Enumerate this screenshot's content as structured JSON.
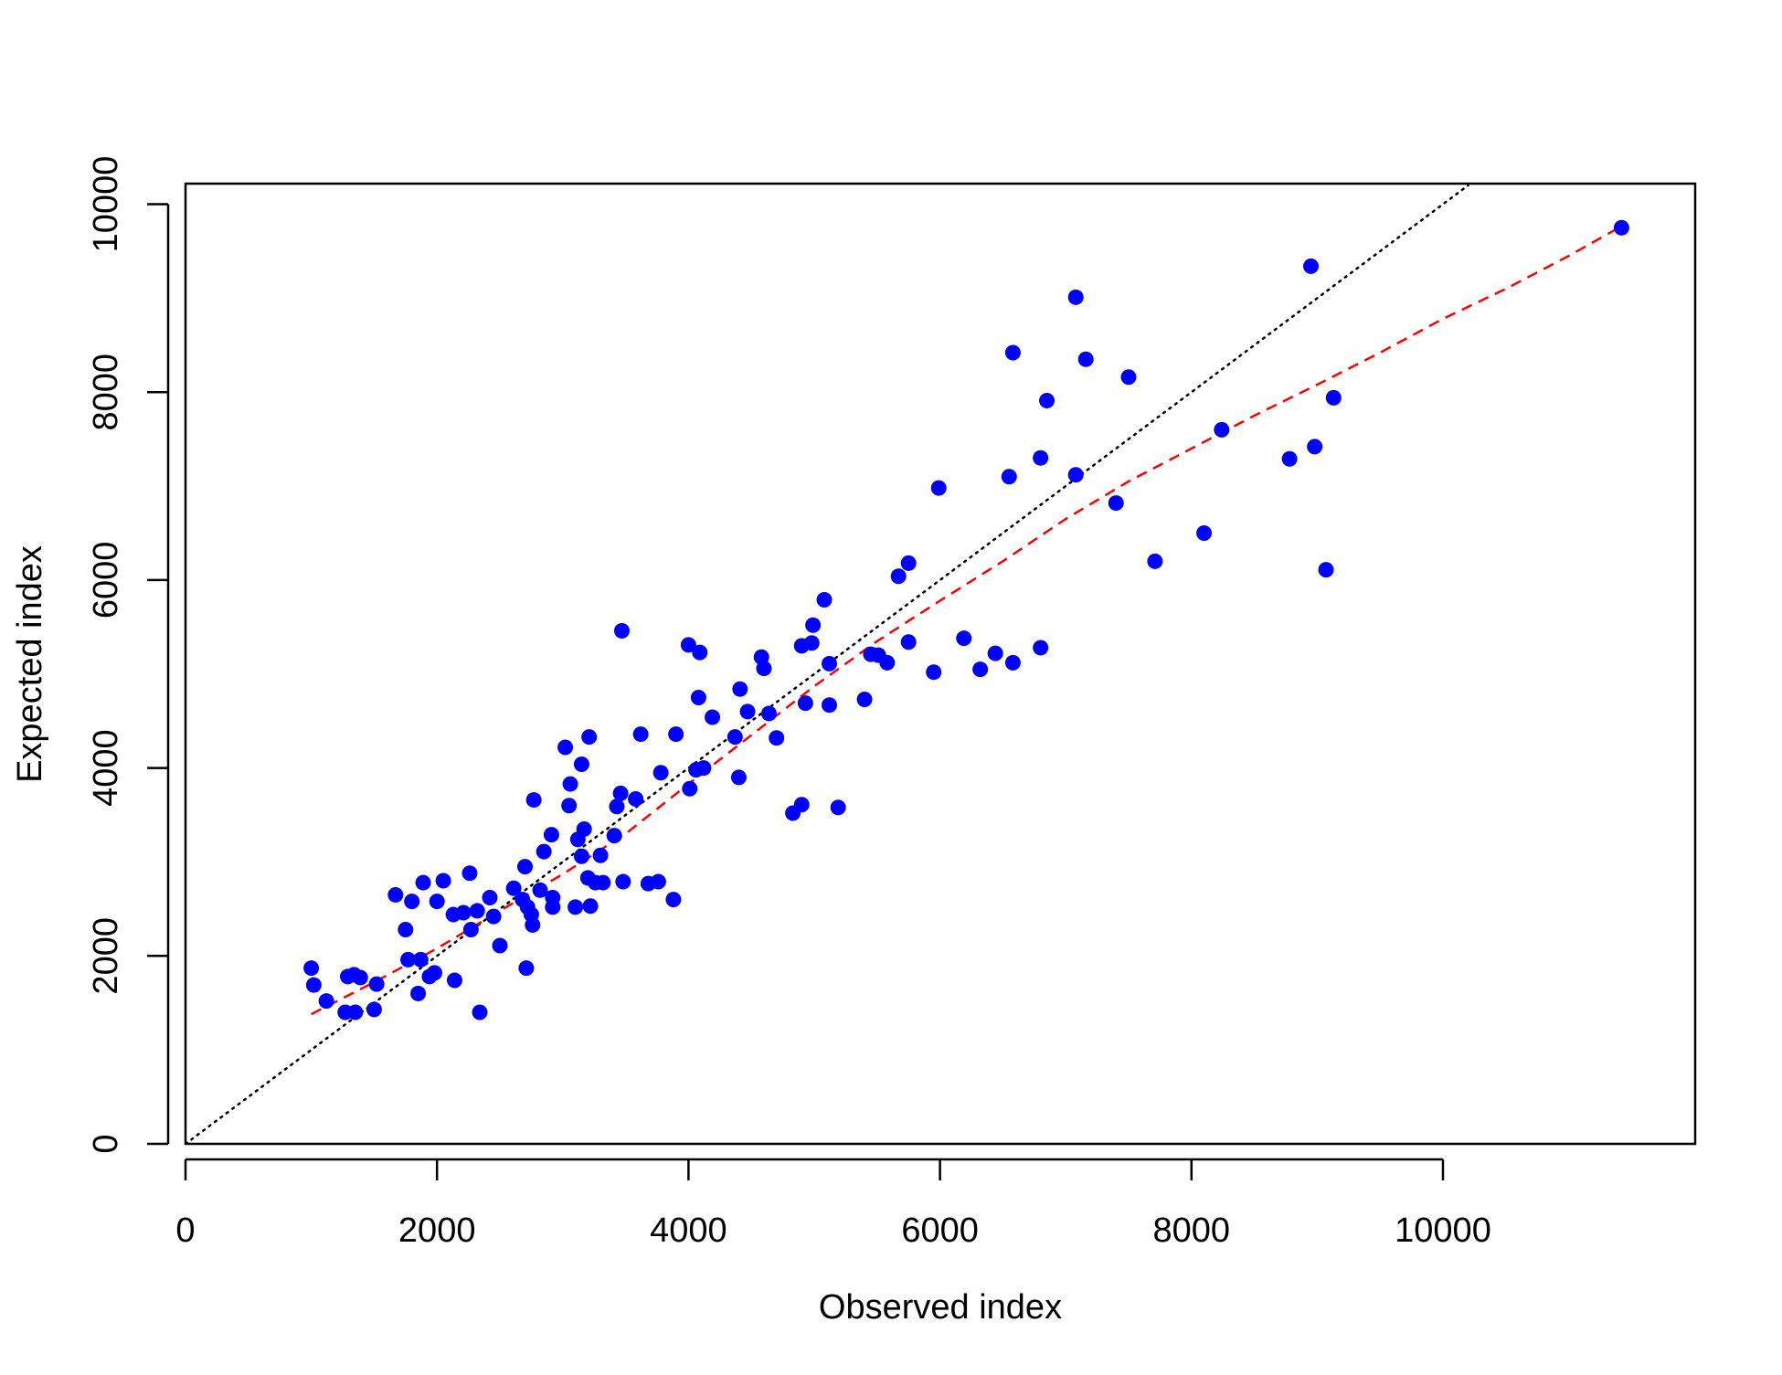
{
  "chart_data": {
    "type": "scatter",
    "xlabel": "Observed index",
    "ylabel": "Expected index",
    "xlim": [
      0,
      12000
    ],
    "ylim": [
      0,
      10200
    ],
    "x_ticks": [
      0,
      2000,
      4000,
      6000,
      8000,
      10000
    ],
    "x_tick_labels": [
      "0",
      "2000",
      "4000",
      "6000",
      "8000",
      "10000"
    ],
    "y_ticks": [
      0,
      2000,
      4000,
      6000,
      8000,
      10000
    ],
    "y_tick_labels": [
      "0",
      "2000",
      "4000",
      "6000",
      "8000",
      "10000"
    ],
    "grid": false,
    "legend": "none",
    "colors": {
      "points": "#0000ff",
      "identity_line": "#000000",
      "smooth_line": "#ff0000"
    },
    "identity_line": {
      "style": "dotted",
      "x": [
        0,
        10200
      ],
      "y": [
        0,
        10200
      ]
    },
    "smooth_line": {
      "style": "dashed",
      "x": [
        1000,
        1500,
        2000,
        2500,
        3000,
        3500,
        4000,
        4500,
        5000,
        5500,
        6000,
        6500,
        7000,
        7500,
        8000,
        8500,
        9000,
        9500,
        10000,
        10500,
        11000,
        11400
      ],
      "y": [
        1380,
        1720,
        2080,
        2480,
        2870,
        3300,
        3830,
        4350,
        4870,
        5350,
        5780,
        6200,
        6650,
        7050,
        7400,
        7750,
        8080,
        8420,
        8780,
        9100,
        9450,
        9750
      ]
    },
    "points": {
      "x": [
        11420,
        8950,
        7080,
        6580,
        7160,
        7500,
        6850,
        8240,
        8780,
        8980,
        9130,
        6800,
        6550,
        7080,
        7400,
        5990,
        7710,
        8100,
        9070,
        5750,
        5670,
        5080,
        4990,
        3470,
        4000,
        4090,
        4980,
        4900,
        5120,
        5750,
        5450,
        5510,
        5580,
        5950,
        6190,
        6440,
        6320,
        6580,
        6800,
        4580,
        4600,
        4410,
        4080,
        4470,
        4930,
        5120,
        5400,
        4190,
        4640,
        4370,
        4700,
        3620,
        3900,
        3210,
        3020,
        3150,
        3060,
        4120,
        4060,
        3780,
        4010,
        4400,
        4830,
        4900,
        5190,
        2770,
        3460,
        3430,
        3580,
        3050,
        3170,
        3120,
        3410,
        2910,
        2700,
        2850,
        3150,
        3300,
        3200,
        3320,
        3260,
        3480,
        3760,
        3680,
        3880,
        2610,
        2680,
        2820,
        2720,
        2750,
        2920,
        2920,
        3100,
        3220,
        2760,
        2260,
        2050,
        1890,
        1670,
        1800,
        2130,
        2210,
        2320,
        2450,
        2000,
        2270,
        1750,
        1770,
        1870,
        1980,
        1940,
        1850,
        2140,
        2420,
        2500,
        2340,
        2710,
        1000,
        1020,
        1120,
        1290,
        1340,
        1390,
        1520,
        1500,
        1270,
        1350
      ],
      "y": [
        9750,
        9340,
        9010,
        8420,
        8350,
        8160,
        7910,
        7600,
        7290,
        7420,
        7940,
        7300,
        7100,
        7120,
        6820,
        6980,
        6200,
        6500,
        6110,
        6180,
        6040,
        5790,
        5520,
        5460,
        5310,
        5230,
        5330,
        5300,
        5110,
        5340,
        5210,
        5200,
        5120,
        5020,
        5380,
        5220,
        5050,
        5120,
        5280,
        5180,
        5060,
        4840,
        4750,
        4600,
        4690,
        4670,
        4730,
        4540,
        4580,
        4330,
        4320,
        4360,
        4360,
        4330,
        4220,
        4040,
        3830,
        4000,
        3980,
        3950,
        3780,
        3900,
        3520,
        3610,
        3580,
        3660,
        3730,
        3590,
        3670,
        3600,
        3350,
        3240,
        3280,
        3290,
        2950,
        3110,
        3060,
        3070,
        2830,
        2780,
        2780,
        2790,
        2790,
        2770,
        2600,
        2720,
        2600,
        2700,
        2520,
        2440,
        2520,
        2620,
        2520,
        2530,
        2330,
        2880,
        2800,
        2780,
        2650,
        2580,
        2440,
        2460,
        2480,
        2420,
        2580,
        2280,
        2280,
        1960,
        1960,
        1820,
        1780,
        1600,
        1740,
        2620,
        2110,
        1400,
        1870,
        1870,
        1690,
        1520,
        1780,
        1800,
        1770,
        1700,
        1430,
        1400,
        1400
      ]
    }
  }
}
